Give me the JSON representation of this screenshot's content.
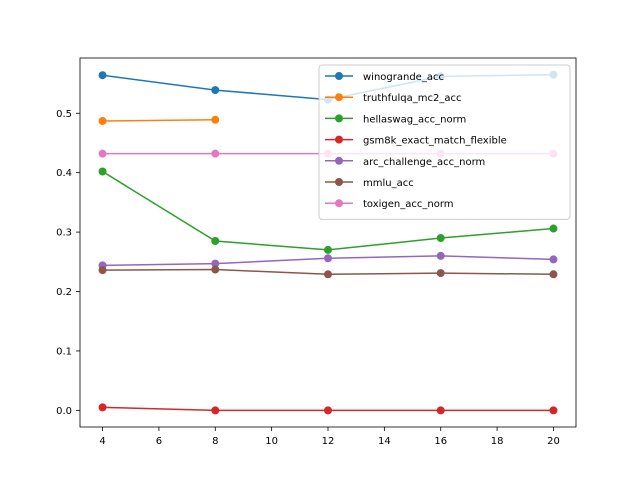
{
  "chart_data": {
    "type": "line",
    "title": "",
    "xlabel": "",
    "ylabel": "",
    "xlim": [
      3.2,
      20.8
    ],
    "ylim": [
      -0.028,
      0.593
    ],
    "xticks": [
      4,
      6,
      8,
      10,
      12,
      14,
      16,
      18,
      20
    ],
    "xtick_labels": [
      "4",
      "6",
      "8",
      "10",
      "12",
      "14",
      "16",
      "18",
      "20"
    ],
    "yticks": [
      0.0,
      0.1,
      0.2,
      0.3,
      0.4,
      0.5
    ],
    "ytick_labels": [
      "0.0",
      "0.1",
      "0.2",
      "0.3",
      "0.4",
      "0.5"
    ],
    "grid": false,
    "legend_position": "top-right",
    "series": [
      {
        "name": "winogrande_acc",
        "color": "#1f77b4",
        "x": [
          4,
          8,
          12,
          16,
          20
        ],
        "y": [
          0.564,
          0.539,
          0.523,
          0.562,
          0.565
        ]
      },
      {
        "name": "truthfulqa_mc2_acc",
        "color": "#ff7f0e",
        "x": [
          4,
          8
        ],
        "y": [
          0.487,
          0.489
        ]
      },
      {
        "name": "hellaswag_acc_norm",
        "color": "#2ca02c",
        "x": [
          4,
          8,
          12,
          16,
          20
        ],
        "y": [
          0.402,
          0.285,
          0.27,
          0.29,
          0.306
        ]
      },
      {
        "name": "gsm8k_exact_match_flexible",
        "color": "#d62728",
        "x": [
          4,
          8,
          12,
          16,
          20
        ],
        "y": [
          0.005,
          0.0,
          0.0,
          0.0,
          0.0
        ]
      },
      {
        "name": "arc_challenge_acc_norm",
        "color": "#9467bd",
        "x": [
          4,
          8,
          12,
          16,
          20
        ],
        "y": [
          0.244,
          0.247,
          0.256,
          0.26,
          0.254
        ]
      },
      {
        "name": "mmlu_acc",
        "color": "#8c564b",
        "x": [
          4,
          8,
          12,
          16,
          20
        ],
        "y": [
          0.236,
          0.237,
          0.229,
          0.231,
          0.229
        ]
      },
      {
        "name": "toxigen_acc_norm",
        "color": "#e377c2",
        "x": [
          4,
          8,
          12,
          16,
          20
        ],
        "y": [
          0.432,
          0.432,
          0.432,
          0.432,
          0.432
        ]
      }
    ]
  }
}
